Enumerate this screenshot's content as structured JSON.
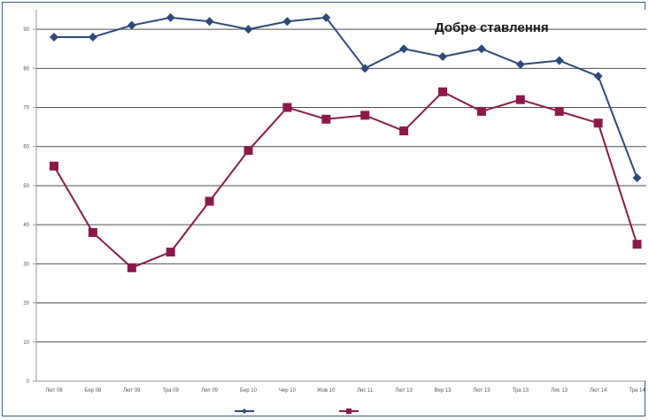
{
  "chart_data": {
    "type": "line",
    "title": "Добре ставлення",
    "xlabel": "",
    "ylabel": "",
    "categories": [
      "Лют 08",
      "Бер 08",
      "Лют 09",
      "Тра 09",
      "Лип 09",
      "Бер 10",
      "Чер 10",
      "Жов 10",
      "Лис 11",
      "Лют 13",
      "Вер 13",
      "Лют 13",
      "Тра 13",
      "Лис 13",
      "Лют 14",
      "Тра 14"
    ],
    "ylim": [
      0,
      95
    ],
    "yticks": [
      0,
      10,
      20,
      30,
      40,
      50,
      60,
      70,
      80,
      90
    ],
    "grid": true,
    "legend_position": "bottom",
    "series": [
      {
        "name": "",
        "color": "#2e4a7a",
        "marker": "diamond",
        "values": [
          88,
          88,
          91,
          93,
          92,
          90,
          92,
          93,
          80,
          85,
          83,
          85,
          81,
          82,
          78,
          52
        ]
      },
      {
        "name": "",
        "color": "#8b1a4a",
        "marker": "square",
        "values": [
          55,
          38,
          29,
          33,
          46,
          59,
          70,
          67,
          68,
          64,
          74,
          69,
          72,
          69,
          66,
          35
        ]
      }
    ]
  }
}
